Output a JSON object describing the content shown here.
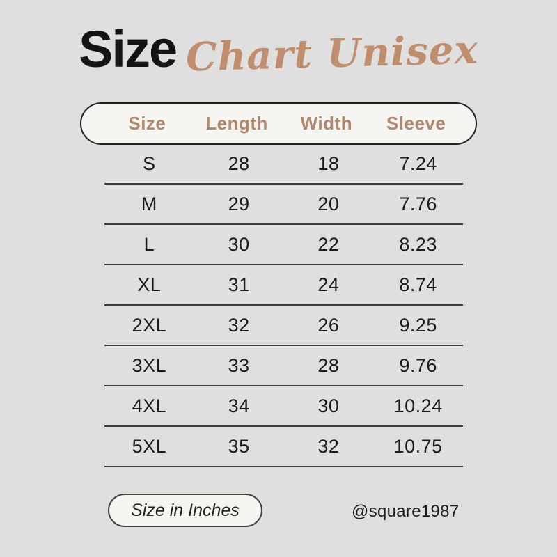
{
  "title": {
    "main": "Size",
    "script": "Chart Unisex"
  },
  "colors": {
    "background": "#dfdfdf",
    "title_black": "#141414",
    "accent_tan": "#c08e6d",
    "header_tan": "#b1886b",
    "pill_fill": "#f7f5f2",
    "pill_border": "#202020",
    "divider": "#3d3d3d",
    "text_dark": "#1c1c1c"
  },
  "chart_data": {
    "type": "table",
    "title": "Size Chart Unisex",
    "columns": [
      "Size",
      "Length",
      "Width",
      "Sleeve"
    ],
    "rows": [
      [
        "S",
        28,
        18,
        7.24
      ],
      [
        "M",
        29,
        20,
        7.76
      ],
      [
        "L",
        30,
        22,
        8.23
      ],
      [
        "XL",
        31,
        24,
        8.74
      ],
      [
        "2XL",
        32,
        26,
        9.25
      ],
      [
        "3XL",
        33,
        28,
        9.76
      ],
      [
        "4XL",
        34,
        30,
        10.24
      ],
      [
        "5XL",
        35,
        32,
        10.75
      ]
    ],
    "unit_note": "Size in Inches"
  },
  "footer": {
    "unit_label": "Size in Inches",
    "credit": "@square1987"
  }
}
